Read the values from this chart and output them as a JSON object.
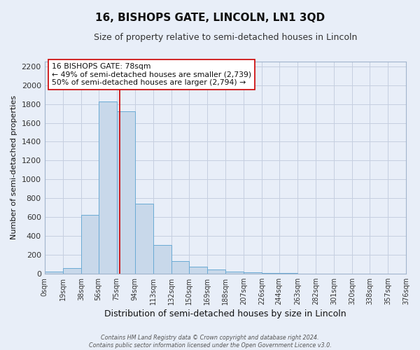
{
  "title": "16, BISHOPS GATE, LINCOLN, LN1 3QD",
  "subtitle": "Size of property relative to semi-detached houses in Lincoln",
  "xlabel": "Distribution of semi-detached houses by size in Lincoln",
  "ylabel": "Number of semi-detached properties",
  "bar_color": "#c8d8ea",
  "bar_edge_color": "#6aaad4",
  "bin_edges": [
    0,
    19,
    38,
    56,
    75,
    94,
    113,
    132,
    150,
    169,
    188,
    207,
    226,
    244,
    263,
    282,
    301,
    320,
    338,
    357,
    376
  ],
  "bar_heights": [
    20,
    60,
    625,
    1830,
    1720,
    740,
    300,
    130,
    70,
    45,
    20,
    15,
    5,
    3,
    1,
    0,
    0,
    1,
    0,
    0
  ],
  "tick_labels": [
    "0sqm",
    "19sqm",
    "38sqm",
    "56sqm",
    "75sqm",
    "94sqm",
    "113sqm",
    "132sqm",
    "150sqm",
    "169sqm",
    "188sqm",
    "207sqm",
    "226sqm",
    "244sqm",
    "263sqm",
    "282sqm",
    "301sqm",
    "320sqm",
    "338sqm",
    "357sqm",
    "376sqm"
  ],
  "property_size": 78,
  "red_line_color": "#cc0000",
  "annotation_text_line1": "16 BISHOPS GATE: 78sqm",
  "annotation_text_line2": "← 49% of semi-detached houses are smaller (2,739)",
  "annotation_text_line3": "50% of semi-detached houses are larger (2,794) →",
  "annotation_box_color": "#ffffff",
  "annotation_box_edge": "#cc0000",
  "ylim": [
    0,
    2250
  ],
  "yticks": [
    0,
    200,
    400,
    600,
    800,
    1000,
    1200,
    1400,
    1600,
    1800,
    2000,
    2200
  ],
  "grid_color": "#c5cfe0",
  "bg_color": "#e8eef8",
  "footer_line1": "Contains HM Land Registry data © Crown copyright and database right 2024.",
  "footer_line2": "Contains public sector information licensed under the Open Government Licence v3.0."
}
